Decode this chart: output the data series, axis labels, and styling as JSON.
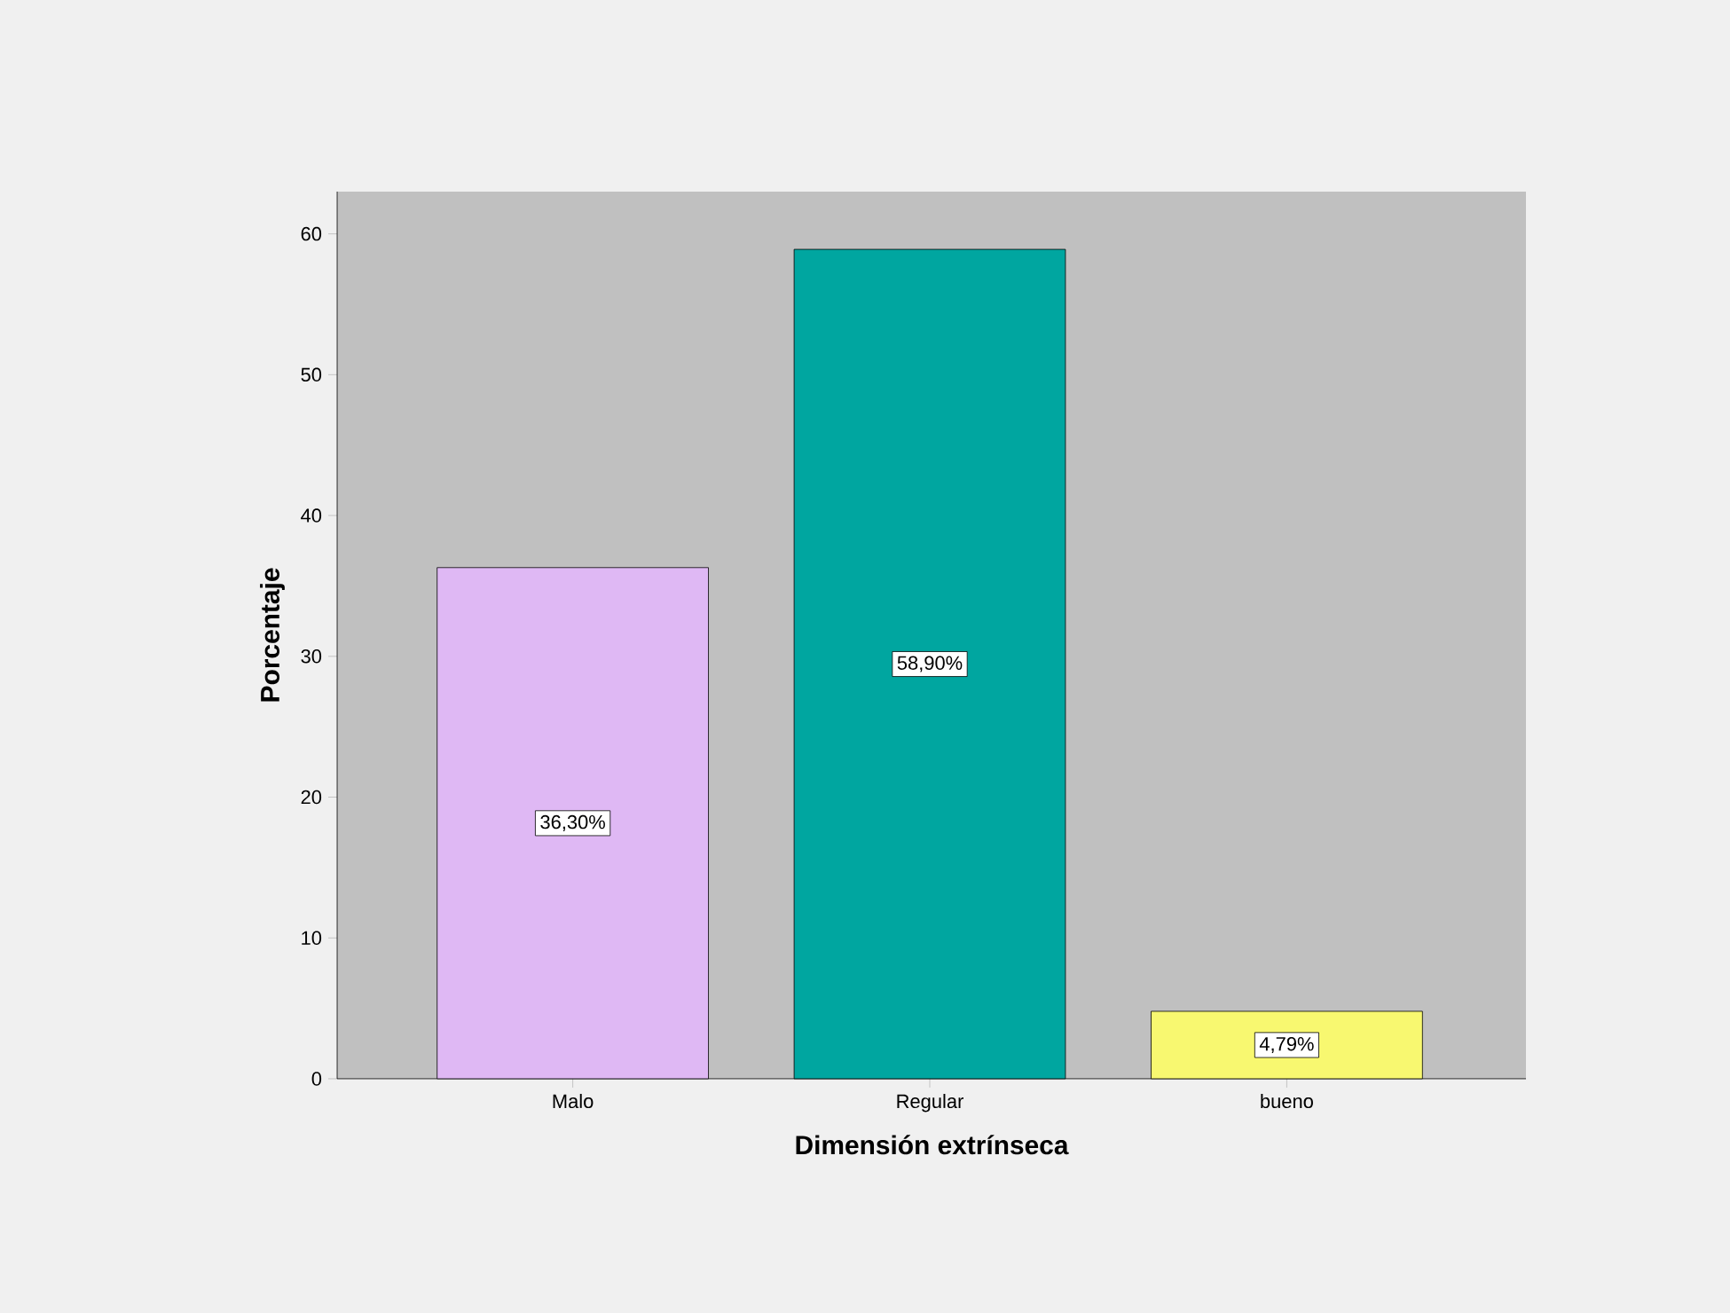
{
  "chart_data": {
    "type": "bar",
    "xlabel": "Dimensión extrínseca",
    "ylabel": "Porcentaje",
    "categories": [
      "Malo",
      "Regular",
      "bueno"
    ],
    "values": [
      36.3,
      58.9,
      4.79
    ],
    "colors": [
      "#dfb8f4",
      "#00a6a0",
      "#f8f870"
    ],
    "value_labels": [
      "36,30%",
      "58,90%",
      "4,79%"
    ],
    "ylim": [
      0,
      63
    ],
    "yticks": [
      0,
      10,
      20,
      30,
      40,
      50,
      60
    ],
    "grid": false
  }
}
